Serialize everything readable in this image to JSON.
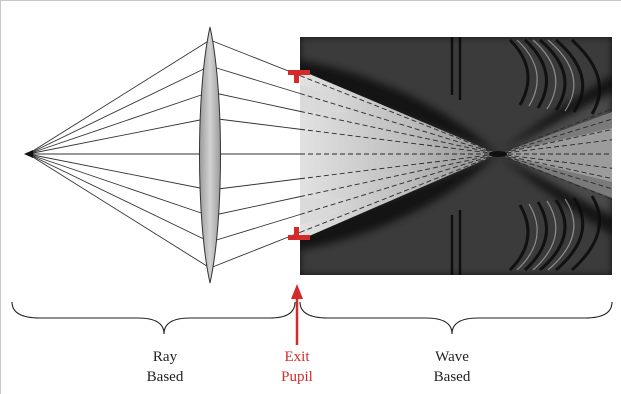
{
  "labels": {
    "ray": [
      "Ray",
      "Based"
    ],
    "exit": [
      "Exit",
      "Pupil"
    ],
    "wave": [
      "Wave",
      "Based"
    ]
  },
  "colors": {
    "accent": "#d42a2a",
    "ink": "#222222",
    "lens_fill": "#b9b9b9",
    "field_dark": "#141414"
  }
}
